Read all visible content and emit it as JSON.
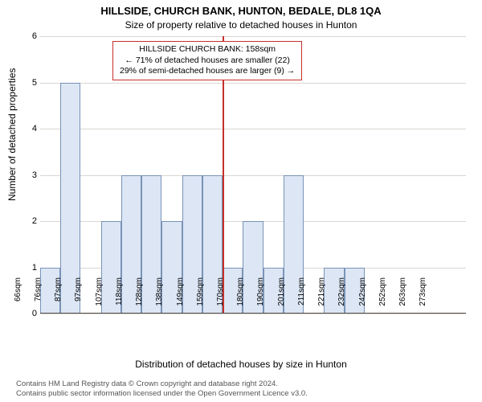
{
  "title": "HILLSIDE, CHURCH BANK, HUNTON, BEDALE, DL8 1QA",
  "subtitle": "Size of property relative to detached houses in Hunton",
  "ylabel": "Number of detached properties",
  "xlabel": "Distribution of detached houses by size in Hunton",
  "chart": {
    "type": "bar",
    "categories": [
      "66sqm",
      "76sqm",
      "87sqm",
      "97sqm",
      "107sqm",
      "118sqm",
      "128sqm",
      "138sqm",
      "149sqm",
      "159sqm",
      "170sqm",
      "180sqm",
      "190sqm",
      "201sqm",
      "211sqm",
      "221sqm",
      "232sqm",
      "242sqm",
      "252sqm",
      "263sqm",
      "273sqm"
    ],
    "values": [
      1,
      5,
      0,
      2,
      3,
      3,
      2,
      3,
      3,
      1,
      2,
      1,
      3,
      0,
      1,
      1,
      0,
      0,
      0,
      0,
      0
    ],
    "bar_fill": "#dce6f4",
    "bar_border": "#7a93b8",
    "background_color": "#ffffff",
    "grid_color": "#d9d6d0",
    "border_color": "#4f4c47",
    "ylim": [
      0,
      6
    ],
    "ytick_step": 1,
    "bar_width": 1.0,
    "refline": {
      "x_index": 9,
      "color": "#c5302c",
      "width": 2
    },
    "infobox": {
      "border_color": "#c5302c",
      "lines": [
        "HILLSIDE CHURCH BANK: 158sqm",
        "← 71% of detached houses are smaller (22)",
        "29% of semi-detached houses are larger (9) →"
      ],
      "fontsize": 10.5
    }
  },
  "footer": {
    "line1": "Contains HM Land Registry data © Crown copyright and database right 2024.",
    "line2": "Contains public sector information licensed under the Open Government Licence v3.0."
  }
}
